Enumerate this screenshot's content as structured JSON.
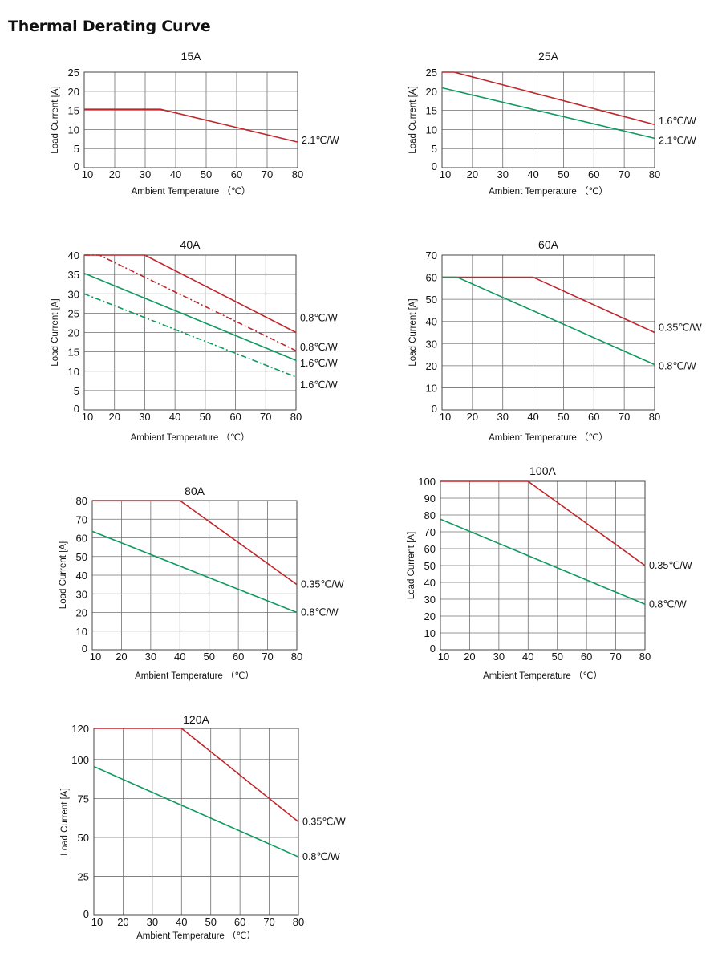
{
  "page": {
    "title": "Thermal Derating Curve"
  },
  "colors": {
    "red": "#c0272d",
    "green": "#0e9a5e",
    "grid": "#707070",
    "text": "#111111"
  },
  "chart_data": [
    {
      "type": "line",
      "id": "15a",
      "title": "15A",
      "xlabel": "Ambient Temperature （℃）",
      "ylabel": "Load Current [A]",
      "xlim": [
        10,
        80
      ],
      "ylim": [
        0,
        25
      ],
      "xticks": [
        10,
        20,
        30,
        40,
        50,
        60,
        70,
        80
      ],
      "yticks": [
        0,
        5,
        10,
        15,
        20,
        25
      ],
      "series": [
        {
          "name": "2.1℃/W",
          "color": "red",
          "dash": false,
          "x": [
            10,
            35,
            80
          ],
          "y": [
            15.3,
            15.3,
            6.7
          ]
        }
      ]
    },
    {
      "type": "line",
      "id": "25a",
      "title": "25A",
      "xlabel": "Ambient Temperature （℃）",
      "ylabel": "Load Current [A]",
      "xlim": [
        10,
        80
      ],
      "ylim": [
        0,
        25
      ],
      "xticks": [
        10,
        20,
        30,
        40,
        50,
        60,
        70,
        80
      ],
      "yticks": [
        0,
        5,
        10,
        15,
        20,
        25
      ],
      "series": [
        {
          "name": "1.6℃/W",
          "color": "red",
          "dash": false,
          "x": [
            10,
            14,
            80
          ],
          "y": [
            25,
            25,
            11.3
          ]
        },
        {
          "name": "2.1℃/W",
          "color": "green",
          "dash": false,
          "x": [
            10,
            80
          ],
          "y": [
            20.9,
            7.7
          ]
        }
      ]
    },
    {
      "type": "line",
      "id": "40a",
      "title": "40A",
      "xlabel": "Ambient Temperature （℃）",
      "ylabel": "Load Current [A]",
      "xlim": [
        10,
        80
      ],
      "ylim": [
        0,
        40
      ],
      "xticks": [
        10,
        20,
        30,
        40,
        50,
        60,
        70,
        80
      ],
      "yticks": [
        0,
        5,
        10,
        15,
        20,
        25,
        30,
        35,
        40
      ],
      "series": [
        {
          "name": "0.8℃/W",
          "color": "red",
          "dash": false,
          "x": [
            10,
            30,
            80
          ],
          "y": [
            40,
            40,
            20
          ]
        },
        {
          "name": "0.8℃/W",
          "color": "red",
          "dash": true,
          "x": [
            10,
            15,
            80
          ],
          "y": [
            40,
            40,
            15.3
          ]
        },
        {
          "name": "1.6℃/W",
          "color": "green",
          "dash": false,
          "x": [
            10,
            80
          ],
          "y": [
            35.3,
            12.8
          ]
        },
        {
          "name": "1.6℃/W",
          "color": "green",
          "dash": true,
          "x": [
            10,
            80
          ],
          "y": [
            30,
            8.5
          ]
        }
      ]
    },
    {
      "type": "line",
      "id": "60a",
      "title": "60A",
      "xlabel": "Ambient Temperature （℃）",
      "ylabel": "Load Current [A]",
      "xlim": [
        10,
        80
      ],
      "ylim": [
        0,
        70
      ],
      "xticks": [
        10,
        20,
        30,
        40,
        50,
        60,
        70,
        80
      ],
      "yticks": [
        0,
        10,
        20,
        30,
        40,
        50,
        60,
        70
      ],
      "series": [
        {
          "name": "0.35℃/W",
          "color": "red",
          "dash": false,
          "x": [
            10,
            40,
            80
          ],
          "y": [
            60,
            60,
            35
          ]
        },
        {
          "name": "0.8℃/W",
          "color": "green",
          "dash": false,
          "x": [
            10,
            15,
            80
          ],
          "y": [
            60,
            60,
            20.5
          ]
        }
      ]
    },
    {
      "type": "line",
      "id": "80a",
      "title": "80A",
      "xlabel": "Ambient Temperature （℃）",
      "ylabel": "Load Current [A]",
      "xlim": [
        10,
        80
      ],
      "ylim": [
        0,
        80
      ],
      "xticks": [
        10,
        20,
        30,
        40,
        50,
        60,
        70,
        80
      ],
      "yticks": [
        0,
        10,
        20,
        30,
        40,
        50,
        60,
        70,
        80
      ],
      "series": [
        {
          "name": "0.35℃/W",
          "color": "red",
          "dash": false,
          "x": [
            10,
            40,
            80
          ],
          "y": [
            80,
            80,
            35
          ]
        },
        {
          "name": "0.8℃/W",
          "color": "green",
          "dash": false,
          "x": [
            10,
            80
          ],
          "y": [
            63.5,
            20
          ]
        }
      ]
    },
    {
      "type": "line",
      "id": "100a",
      "title": "100A",
      "xlabel": "Ambient Temperature （℃）",
      "ylabel": "Load Current [A]",
      "xlim": [
        10,
        80
      ],
      "ylim": [
        0,
        100
      ],
      "xticks": [
        10,
        20,
        30,
        40,
        50,
        60,
        70,
        80
      ],
      "yticks": [
        0,
        10,
        20,
        30,
        40,
        50,
        60,
        70,
        80,
        90,
        100
      ],
      "series": [
        {
          "name": "0.35℃/W",
          "color": "red",
          "dash": false,
          "x": [
            10,
            40,
            80
          ],
          "y": [
            100,
            100,
            50
          ]
        },
        {
          "name": "0.8℃/W",
          "color": "green",
          "dash": false,
          "x": [
            10,
            80
          ],
          "y": [
            77.5,
            27
          ]
        }
      ]
    },
    {
      "type": "line",
      "id": "120a",
      "title": "120A",
      "xlabel": "Ambient Temperature （℃）",
      "ylabel": "Load Current [A]",
      "xlim": [
        10,
        80
      ],
      "ylim": [
        0,
        120
      ],
      "xticks": [
        10,
        20,
        30,
        40,
        50,
        60,
        70,
        80
      ],
      "yticks": [
        0,
        25,
        50,
        75,
        100,
        120
      ],
      "series": [
        {
          "name": "0.35℃/W",
          "color": "red",
          "dash": false,
          "x": [
            10,
            40,
            80
          ],
          "y": [
            120,
            120,
            60
          ]
        },
        {
          "name": "0.8℃/W",
          "color": "green",
          "dash": false,
          "x": [
            10,
            80
          ],
          "y": [
            95.5,
            37.5
          ]
        }
      ]
    }
  ]
}
